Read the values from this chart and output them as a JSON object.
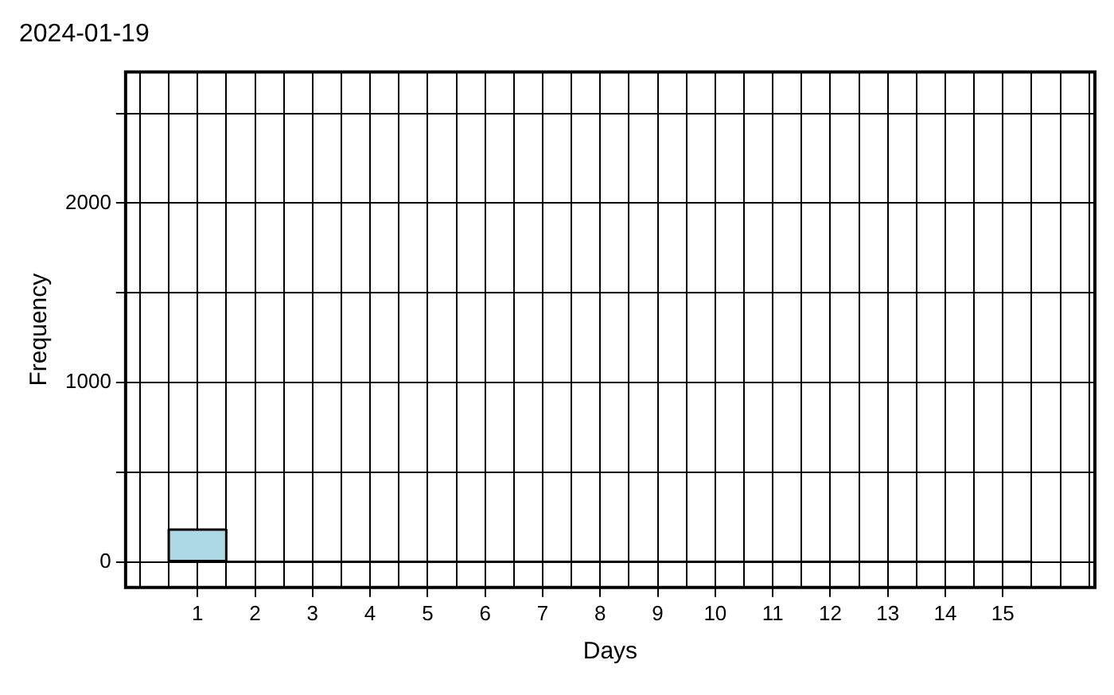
{
  "chart_data": {
    "type": "histogram",
    "title": "2024-01-19",
    "xlabel": "Days",
    "ylabel": "Frequency",
    "bins": [
      0.5,
      1.5,
      2.5,
      3.5,
      4.5,
      5.5,
      6.5,
      7.5,
      8.5,
      9.5,
      10.5,
      11.5,
      12.5,
      13.5,
      14.5,
      15.5
    ],
    "values": [
      180,
      0,
      0,
      0,
      0,
      0,
      0,
      0,
      0,
      0,
      0,
      0,
      0,
      0,
      0
    ],
    "color": "#add8e6",
    "xlim": [
      -0.25,
      16.6
    ],
    "xticks": [
      {
        "value": 0,
        "label": null
      },
      {
        "value": 0.5,
        "label": null
      },
      1,
      {
        "value": 1.5,
        "label": null
      },
      2,
      {
        "value": 2.5,
        "label": null
      },
      3,
      {
        "value": 3.5,
        "label": null
      },
      4,
      {
        "value": 4.5,
        "label": null
      },
      5,
      {
        "value": 5.5,
        "label": null
      },
      6,
      {
        "value": 6.5,
        "label": null
      },
      7,
      {
        "value": 7.5,
        "label": null
      },
      8,
      {
        "value": 8.5,
        "label": null
      },
      9,
      {
        "value": 9.5,
        "label": null
      },
      10,
      {
        "value": 10.5,
        "label": null
      },
      11,
      {
        "value": 11.5,
        "label": null
      },
      12,
      {
        "value": 12.5,
        "label": null
      },
      13,
      {
        "value": 13.5,
        "label": null
      },
      14,
      {
        "value": 14.5,
        "label": null
      },
      15,
      {
        "value": 15.5,
        "label": null
      },
      {
        "value": 16,
        "label": null
      },
      {
        "value": 16.5,
        "label": null
      }
    ],
    "ylim": [
      -143,
      2732
    ],
    "yticks": [
      0,
      {
        "value": 500,
        "label": null
      },
      1000,
      {
        "value": 1500,
        "label": null
      },
      2000,
      {
        "value": 2500,
        "label": null
      }
    ],
    "grid": true,
    "legend": false
  }
}
